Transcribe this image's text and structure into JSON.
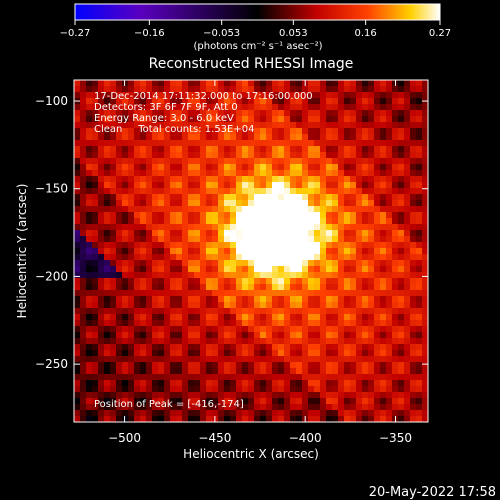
{
  "chart_data": {
    "type": "heatmap",
    "title": "Reconstructed RHESSI Image",
    "xlabel": "Heliocentric X (arcsec)",
    "ylabel": "Heliocentric Y (arcsec)",
    "xlim": [
      -528,
      -332
    ],
    "ylim": [
      -283,
      -88
    ],
    "x_ticks": [
      -500,
      -450,
      -400,
      -350
    ],
    "y_ticks": [
      -100,
      -150,
      -200,
      -250
    ],
    "x_tick_labels": [
      "−500",
      "−450",
      "−400",
      "−350"
    ],
    "y_tick_labels": [
      "−100",
      "−150",
      "−200",
      "−250"
    ],
    "colorbar": {
      "range": [
        -0.27,
        0.27
      ],
      "ticks": [
        -0.27,
        -0.16,
        -0.053,
        0.053,
        0.16,
        0.27
      ],
      "tick_labels": [
        "−0.27",
        "−0.16",
        "−0.053",
        "0.053",
        "0.16",
        "0.27"
      ],
      "units": "(photons cm⁻² s⁻¹ asec⁻²)",
      "colors": [
        "#0000ff",
        "#5a00c0",
        "#000000",
        "#c00000",
        "#ff4000",
        "#ffd000",
        "#ffffff"
      ]
    },
    "annotations": [
      "17-Dec-2014 17:11:32.000 to 17:16:00.000",
      "Detectors: 3F 6F 7F 9F, Att 0",
      "Energy Range: 3.0 - 6.0 keV",
      "Clean     Total counts: 1.53E+04",
      "Position of Peak = [-416,-174]"
    ],
    "peak": {
      "x": -416,
      "y": -174,
      "value": 0.27
    },
    "timestamp": "20-May-2022 17:58"
  }
}
